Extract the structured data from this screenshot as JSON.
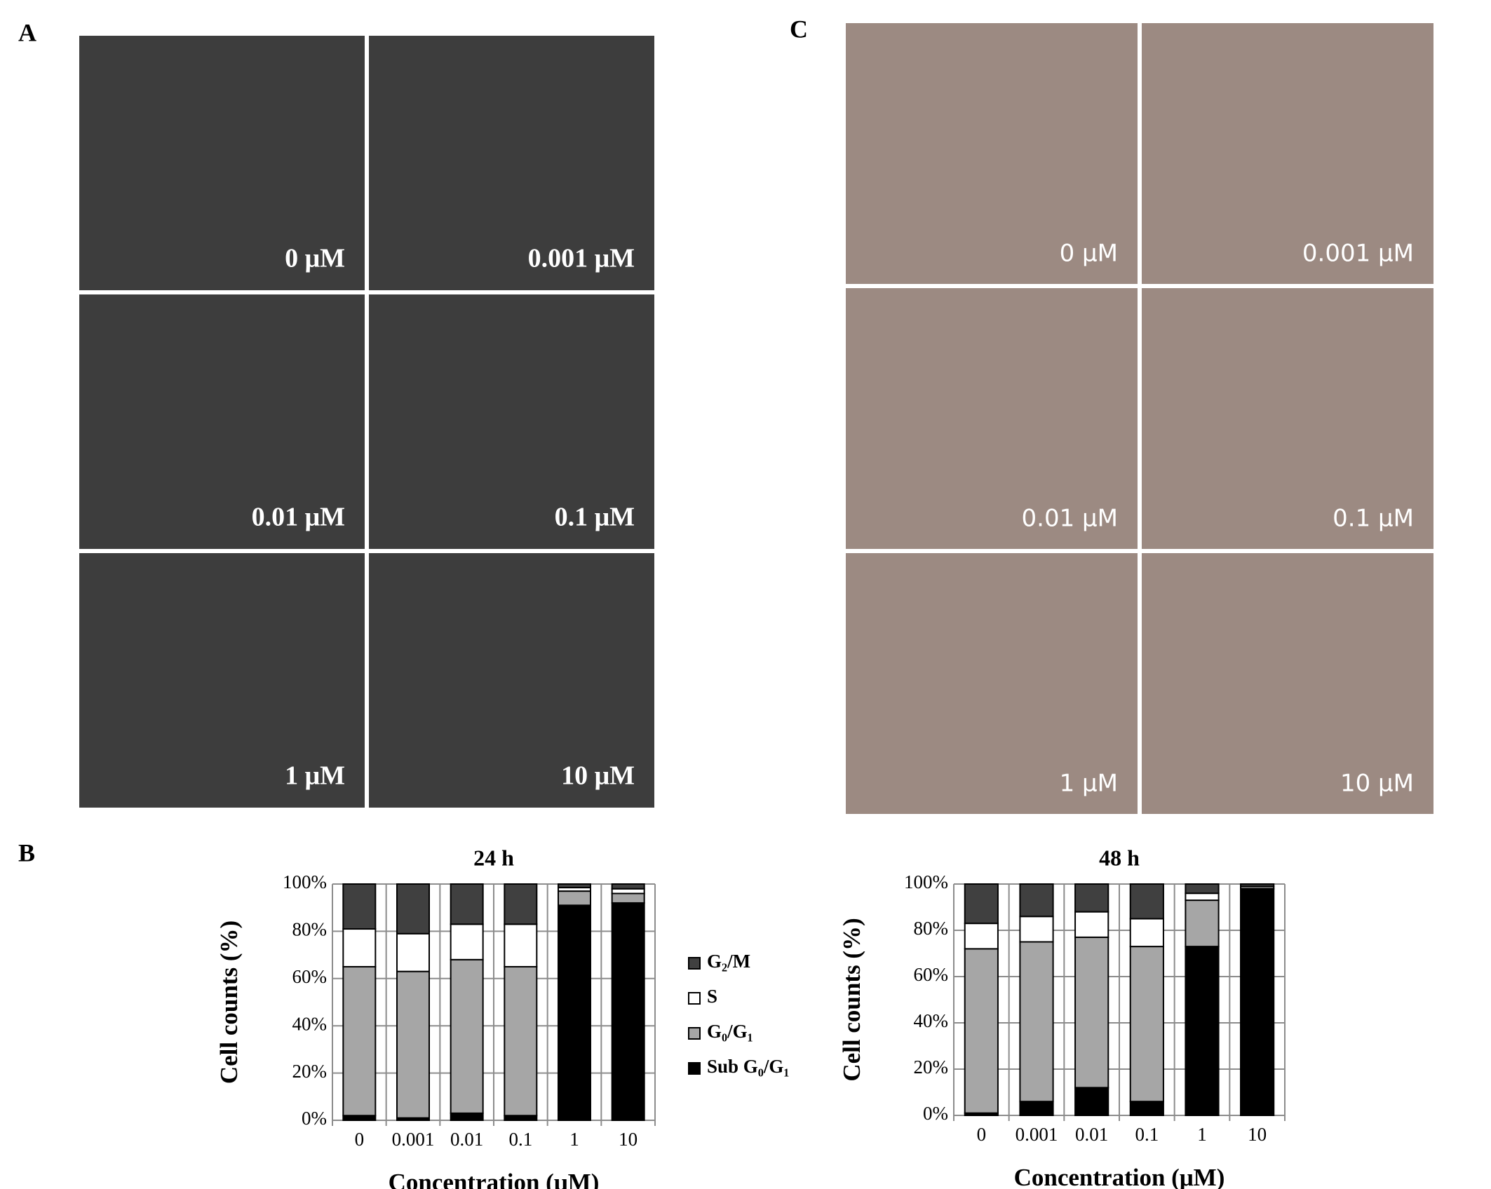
{
  "figure": {
    "panel_letters": [
      "A",
      "B",
      "C"
    ],
    "micrographs_a": [
      "0 μM",
      "0.001 μM",
      "0.01 μM",
      "0.1 μM",
      "1 μM",
      "10 μM"
    ],
    "micrographs_c": [
      "0 μM",
      "0.001 μM",
      "0.01 μM",
      "0.1 μM",
      "1 μM",
      "10 μM"
    ]
  },
  "chart_data": [
    {
      "type": "bar",
      "stacked": true,
      "title": "24 h",
      "x_label": "Concentration (μM)",
      "y_label": "Cell counts (%)",
      "categories": [
        "0",
        "0.001",
        "0.01",
        "0.1",
        "1",
        "10"
      ],
      "series": [
        {
          "name": "Sub G₀/G₁",
          "color": "#000000",
          "values": [
            2,
            1,
            3,
            2,
            91,
            92
          ]
        },
        {
          "name": "G₀/G₁",
          "color": "#a6a6a6",
          "values": [
            63,
            62,
            65,
            63,
            6,
            4
          ]
        },
        {
          "name": "S",
          "color": "#ffffff",
          "values": [
            16,
            16,
            15,
            18,
            1.5,
            2
          ]
        },
        {
          "name": "G₂/M",
          "color": "#404040",
          "values": [
            19,
            21,
            17,
            17,
            1.5,
            2
          ]
        }
      ],
      "ylim": [
        0,
        100
      ],
      "yticks": [
        {
          "value": 0,
          "label": "0%"
        },
        {
          "value": 20,
          "label": "20%"
        },
        {
          "value": 40,
          "label": "40%"
        },
        {
          "value": 60,
          "label": "60%"
        },
        {
          "value": 80,
          "label": "80%"
        },
        {
          "value": 100,
          "label": "100%"
        }
      ],
      "grid": true,
      "legend": "right"
    },
    {
      "type": "bar",
      "stacked": true,
      "title": "48 h",
      "x_label": "Concentration (μM)",
      "y_label": "Cell counts (%)",
      "categories": [
        "0",
        "0.001",
        "0.01",
        "0.1",
        "1",
        "10"
      ],
      "series": [
        {
          "color": "#000000",
          "values": [
            1,
            6,
            12,
            6,
            73,
            98
          ]
        },
        {
          "color": "#a6a6a6",
          "values": [
            71,
            69,
            65,
            67,
            20,
            1
          ]
        },
        {
          "color": "#ffffff",
          "values": [
            11,
            11,
            11,
            12,
            3,
            0
          ]
        },
        {
          "color": "#404040",
          "values": [
            17,
            14,
            12,
            15,
            4,
            1
          ]
        }
      ],
      "ylim": [
        0,
        100
      ],
      "yticks": [
        {
          "value": 0,
          "label": "0%"
        },
        {
          "value": 20,
          "label": "20%"
        },
        {
          "value": 40,
          "label": "40%"
        },
        {
          "value": 60,
          "label": "60%"
        },
        {
          "value": 80,
          "label": "80%"
        },
        {
          "value": 100,
          "label": "100%"
        }
      ],
      "grid": true
    }
  ]
}
